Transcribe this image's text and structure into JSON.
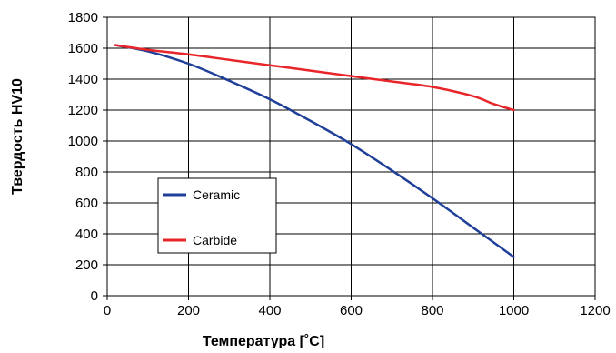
{
  "chart_data": {
    "type": "line",
    "title": "",
    "xlabel": "Температура [˚C]",
    "ylabel": "Твердость HV10",
    "xlim": [
      0,
      1200
    ],
    "ylim": [
      0,
      1800
    ],
    "x_ticks": [
      "0",
      "200",
      "400",
      "600",
      "800",
      "1000",
      "1200"
    ],
    "y_ticks": [
      "0",
      "200",
      "400",
      "600",
      "800",
      "1000",
      "1200",
      "1400",
      "1600",
      "1800"
    ],
    "grid": true,
    "legend_position": "center-left",
    "series": [
      {
        "name": "Ceramic",
        "color": "#1f3f99",
        "x": [
          20,
          100,
          200,
          300,
          400,
          500,
          600,
          700,
          800,
          900,
          1000
        ],
        "y": [
          1620,
          1580,
          1500,
          1390,
          1270,
          1130,
          980,
          810,
          630,
          440,
          250
        ]
      },
      {
        "name": "Carbide",
        "color": "#e8262a",
        "x": [
          20,
          100,
          200,
          300,
          400,
          500,
          600,
          700,
          800,
          900,
          950,
          1000
        ],
        "y": [
          1620,
          1590,
          1560,
          1525,
          1490,
          1455,
          1420,
          1385,
          1350,
          1290,
          1240,
          1200
        ]
      }
    ]
  }
}
